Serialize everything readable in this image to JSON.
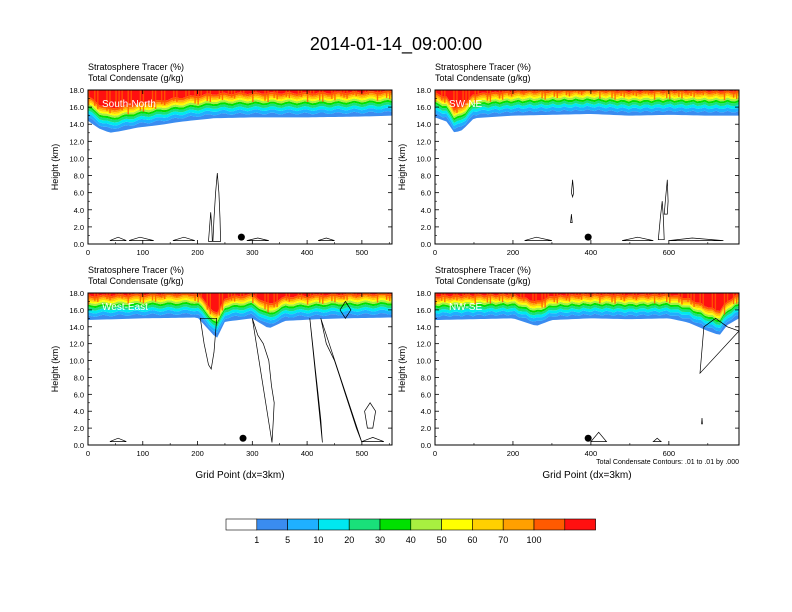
{
  "figure": {
    "title": "2014-01-14_09:00:00",
    "contour_note": "Total Condensate Contours: .01 to .01 by .000"
  },
  "colors": {
    "levels": [
      "#ffffff",
      "#3a8cf0",
      "#1fb0ff",
      "#00e8f0",
      "#19e07a",
      "#00e000",
      "#a8f040",
      "#ffff00",
      "#ffd000",
      "#ffa000",
      "#ff5a00",
      "#ff1010"
    ],
    "marker": "#000000"
  },
  "colorbar": {
    "labels": [
      "1",
      "5",
      "10",
      "20",
      "30",
      "40",
      "50",
      "60",
      "70",
      "100"
    ]
  },
  "chart_data": [
    {
      "type": "heatmap",
      "panel": "upper-left",
      "header_line1": "Stratosphere Tracer   (%)",
      "header_line2": "Total Condensate   (g/kg)",
      "label": "South-North",
      "ylabel": "Height (km)",
      "xlabel": "",
      "xlim": [
        0,
        555
      ],
      "ylim": [
        0,
        18
      ],
      "x_ticks": [
        0,
        100,
        200,
        300,
        400,
        500
      ],
      "y_ticks": [
        "0.0",
        "2.0",
        "4.0",
        "6.0",
        "8.0",
        "10.0",
        "12.0",
        "14.0",
        "16.0",
        "18.0"
      ],
      "tracer_base_km": [
        [
          0,
          14.4
        ],
        [
          20,
          13.5
        ],
        [
          40,
          13.0
        ],
        [
          60,
          13.2
        ],
        [
          90,
          13.6
        ],
        [
          130,
          13.9
        ],
        [
          170,
          14.3
        ],
        [
          230,
          14.7
        ],
        [
          300,
          14.8
        ],
        [
          400,
          14.8
        ],
        [
          500,
          14.9
        ],
        [
          555,
          15.0
        ]
      ],
      "marker": {
        "x": 280,
        "y": 0.8
      },
      "contours": [
        [
          [
            228,
            0.3
          ],
          [
            230,
            3
          ],
          [
            233,
            6
          ],
          [
            236,
            8.3
          ],
          [
            239,
            6
          ],
          [
            241,
            3
          ],
          [
            242,
            0.3
          ]
        ],
        [
          [
            220,
            0.3
          ],
          [
            222,
            2
          ],
          [
            224,
            3.7
          ],
          [
            226,
            2
          ],
          [
            227,
            0.3
          ]
        ],
        [
          [
            40,
            0.4
          ],
          [
            55,
            0.8
          ],
          [
            70,
            0.4
          ]
        ],
        [
          [
            75,
            0.4
          ],
          [
            95,
            0.8
          ],
          [
            120,
            0.4
          ]
        ],
        [
          [
            155,
            0.4
          ],
          [
            175,
            0.8
          ],
          [
            195,
            0.4
          ]
        ],
        [
          [
            290,
            0.4
          ],
          [
            310,
            0.7
          ],
          [
            330,
            0.4
          ]
        ],
        [
          [
            420,
            0.4
          ],
          [
            435,
            0.7
          ],
          [
            450,
            0.4
          ]
        ]
      ]
    },
    {
      "type": "heatmap",
      "panel": "upper-right",
      "header_line1": "Stratosphere Tracer   (%)",
      "header_line2": "Total Condensate   (g/kg)",
      "label": "SW-NE",
      "ylabel": "Height (km)",
      "xlabel": "",
      "xlim": [
        0,
        780
      ],
      "ylim": [
        0,
        18
      ],
      "x_ticks": [
        0,
        200,
        400,
        600
      ],
      "y_ticks": [
        "0.0",
        "2.0",
        "4.0",
        "6.0",
        "8.0",
        "10.0",
        "12.0",
        "14.0",
        "16.0",
        "18.0"
      ],
      "tracer_base_km": [
        [
          0,
          14.8
        ],
        [
          30,
          14.3
        ],
        [
          50,
          13.0
        ],
        [
          70,
          13.3
        ],
        [
          100,
          14.7
        ],
        [
          200,
          15.0
        ],
        [
          300,
          15.1
        ],
        [
          400,
          15.2
        ],
        [
          500,
          15.0
        ],
        [
          600,
          15.1
        ],
        [
          700,
          15.0
        ],
        [
          780,
          15.0
        ]
      ],
      "marker": {
        "x": 393,
        "y": 0.8
      },
      "contours": [
        [
          [
            573,
            0.5
          ],
          [
            578,
            3
          ],
          [
            583,
            5
          ],
          [
            586,
            3
          ],
          [
            588,
            0.5
          ]
        ],
        [
          [
            588,
            3.5
          ],
          [
            592,
            5.5
          ],
          [
            596,
            7.5
          ],
          [
            598,
            5
          ],
          [
            596,
            3.5
          ]
        ],
        [
          [
            350,
            6
          ],
          [
            353,
            7.5
          ],
          [
            356,
            6
          ],
          [
            353,
            5.5
          ]
        ],
        [
          [
            348,
            2.5
          ],
          [
            350,
            3.5
          ],
          [
            352,
            2.5
          ]
        ],
        [
          [
            230,
            0.4
          ],
          [
            260,
            0.8
          ],
          [
            300,
            0.4
          ]
        ],
        [
          [
            480,
            0.4
          ],
          [
            520,
            0.8
          ],
          [
            560,
            0.4
          ]
        ],
        [
          [
            600,
            0.4
          ],
          [
            660,
            0.7
          ],
          [
            740,
            0.4
          ]
        ]
      ]
    },
    {
      "type": "heatmap",
      "panel": "lower-left",
      "header_line1": "Stratosphere Tracer   (%)",
      "header_line2": "Total Condensate   (g/kg)",
      "label": "West-East",
      "ylabel": "Height (km)",
      "xlabel": "Grid Point (dx=3km)",
      "xlim": [
        0,
        555
      ],
      "ylim": [
        0,
        18
      ],
      "x_ticks": [
        0,
        100,
        200,
        300,
        400,
        500
      ],
      "y_ticks": [
        "0.0",
        "2.0",
        "4.0",
        "6.0",
        "8.0",
        "10.0",
        "12.0",
        "14.0",
        "16.0",
        "18.0"
      ],
      "tracer_base_km": [
        [
          0,
          14.8
        ],
        [
          100,
          15.0
        ],
        [
          200,
          15.1
        ],
        [
          235,
          12.6
        ],
        [
          250,
          14.6
        ],
        [
          300,
          15.0
        ],
        [
          330,
          13.8
        ],
        [
          360,
          14.7
        ],
        [
          420,
          14.9
        ],
        [
          470,
          15.0
        ],
        [
          555,
          15.1
        ]
      ],
      "marker": {
        "x": 283,
        "y": 0.8
      },
      "contours": [
        [
          [
            205,
            15
          ],
          [
            212,
            12
          ],
          [
            220,
            9.5
          ],
          [
            225,
            9
          ],
          [
            230,
            11
          ],
          [
            235,
            15
          ]
        ],
        [
          [
            300,
            15
          ],
          [
            310,
            13
          ],
          [
            320,
            12
          ],
          [
            330,
            10
          ],
          [
            335,
            7
          ],
          [
            340,
            5
          ],
          [
            338,
            2.5
          ],
          [
            336,
            0.3
          ]
        ],
        [
          [
            425,
            15
          ],
          [
            435,
            12
          ],
          [
            450,
            10
          ],
          [
            460,
            8
          ],
          [
            470,
            6
          ],
          [
            480,
            4
          ],
          [
            490,
            2
          ],
          [
            500,
            0.3
          ]
        ],
        [
          [
            405,
            15
          ],
          [
            410,
            12
          ],
          [
            415,
            9
          ],
          [
            420,
            6
          ],
          [
            425,
            3
          ],
          [
            428,
            0.3
          ]
        ],
        [
          [
            460,
            16
          ],
          [
            470,
            17
          ],
          [
            480,
            16
          ],
          [
            470,
            15
          ]
        ],
        [
          [
            505,
            4
          ],
          [
            510,
            2
          ],
          [
            520,
            2
          ],
          [
            525,
            4
          ],
          [
            515,
            5
          ]
        ],
        [
          [
            40,
            0.4
          ],
          [
            55,
            0.8
          ],
          [
            70,
            0.4
          ]
        ],
        [
          [
            500,
            0.4
          ],
          [
            520,
            0.9
          ],
          [
            540,
            0.4
          ]
        ]
      ]
    },
    {
      "type": "heatmap",
      "panel": "lower-right",
      "header_line1": "Stratosphere Tracer   (%)",
      "header_line2": "Total Condensate   (g/kg)",
      "label": "NW-SE",
      "ylabel": "Height (km)",
      "xlabel": "Grid Point (dx=3km)",
      "xlim": [
        0,
        780
      ],
      "ylim": [
        0,
        18
      ],
      "x_ticks": [
        0,
        200,
        400,
        600
      ],
      "y_ticks": [
        "0.0",
        "2.0",
        "4.0",
        "6.0",
        "8.0",
        "10.0",
        "12.0",
        "14.0",
        "16.0",
        "18.0"
      ],
      "tracer_base_km": [
        [
          0,
          14.8
        ],
        [
          100,
          14.9
        ],
        [
          200,
          15.0
        ],
        [
          260,
          14.1
        ],
        [
          300,
          14.8
        ],
        [
          400,
          15.0
        ],
        [
          500,
          14.9
        ],
        [
          600,
          15.0
        ],
        [
          650,
          14.5
        ],
        [
          700,
          13.5
        ],
        [
          730,
          13.0
        ],
        [
          750,
          14.2
        ],
        [
          780,
          15.0
        ]
      ],
      "marker": {
        "x": 393,
        "y": 0.8
      },
      "contours": [
        [
          [
            680,
            8.5
          ],
          [
            690,
            14
          ],
          [
            720,
            15
          ],
          [
            750,
            14
          ],
          [
            780,
            13.5
          ]
        ],
        [
          [
            684,
            2.5
          ],
          [
            685,
            3.2
          ],
          [
            686,
            2.5
          ]
        ],
        [
          [
            400,
            0.4
          ],
          [
            420,
            1.5
          ],
          [
            440,
            0.4
          ]
        ],
        [
          [
            560,
            0.4
          ],
          [
            570,
            0.8
          ],
          [
            580,
            0.4
          ]
        ]
      ]
    }
  ]
}
